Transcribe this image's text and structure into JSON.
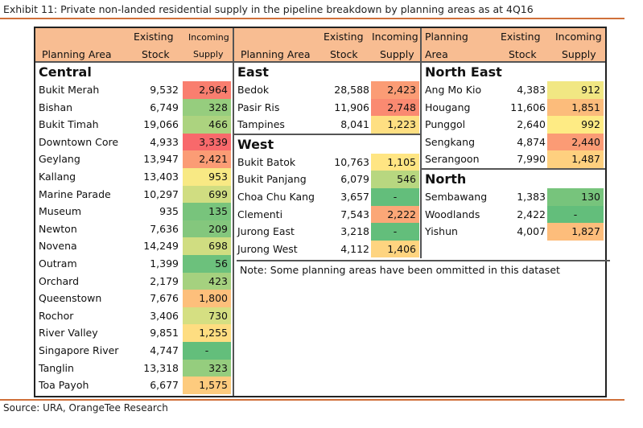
{
  "title": "Exhibit 11: Private non-landed residential supply in the pipeline breakdown by planning areas as at 4Q16",
  "source": "Source: URA, OrangeTee Research",
  "note": "Note: Some planning areas have been ommitted in this dataset",
  "headers": {
    "central": {
      "area": "Planning Area",
      "stock1": "Existing",
      "stock2": "Stock",
      "supply1": "Incoming",
      "supply2": "Supply"
    },
    "middle": {
      "area": "Planning Area",
      "stock1": "Existing",
      "stock2": "Stock",
      "supply1": "Incoming",
      "supply2": "Supply"
    },
    "right": {
      "area1": "Planning",
      "area2": "Area",
      "stock1": "Existing",
      "stock2": "Stock",
      "supply1": "Incoming",
      "supply2": "Supply"
    }
  },
  "columns": [
    {
      "regions": [
        {
          "name": "Central",
          "rows": [
            [
              "Bukit Merah",
              "9,532",
              "2,964"
            ],
            [
              "Bishan",
              "6,749",
              "328"
            ],
            [
              "Bukit Timah",
              "19,066",
              "466"
            ],
            [
              "Downtown Core",
              "4,933",
              "3,339"
            ],
            [
              "Geylang",
              "13,947",
              "2,421"
            ],
            [
              "Kallang",
              "13,403",
              "953"
            ],
            [
              "Marine Parade",
              "10,297",
              "699"
            ],
            [
              "Museum",
              "935",
              "135"
            ],
            [
              "Newton",
              "7,636",
              "209"
            ],
            [
              "Novena",
              "14,249",
              "698"
            ],
            [
              "Outram",
              "1,399",
              "56"
            ],
            [
              "Orchard",
              "2,179",
              "423"
            ],
            [
              "Queenstown",
              "7,676",
              "1,800"
            ],
            [
              "Rochor",
              "3,406",
              "730"
            ],
            [
              "River Valley",
              "9,851",
              "1,255"
            ],
            [
              "Singapore River",
              "4,747",
              "-"
            ],
            [
              "Tanglin",
              "13,318",
              "323"
            ],
            [
              "Toa Payoh",
              "6,677",
              "1,575"
            ]
          ]
        }
      ]
    },
    {
      "regions": [
        {
          "name": "East",
          "rows": [
            [
              "Bedok",
              "28,588",
              "2,423"
            ],
            [
              "Pasir Ris",
              "11,906",
              "2,748"
            ],
            [
              "Tampines",
              "8,041",
              "1,223"
            ]
          ]
        },
        {
          "name": "West",
          "rows": [
            [
              "Bukit Batok",
              "10,763",
              "1,105"
            ],
            [
              "Bukit Panjang",
              "6,079",
              "546"
            ],
            [
              "Choa Chu Kang",
              "3,657",
              "-"
            ],
            [
              "Clementi",
              "7,543",
              "2,222"
            ],
            [
              "Jurong East",
              "3,218",
              "-"
            ],
            [
              "Jurong West",
              "4,112",
              "1,406"
            ]
          ]
        }
      ]
    },
    {
      "regions": [
        {
          "name": "North East",
          "rows": [
            [
              "Ang Mo Kio",
              "4,383",
              "912"
            ],
            [
              "Hougang",
              "11,606",
              "1,851"
            ],
            [
              "Punggol",
              "2,640",
              "992"
            ],
            [
              "Sengkang",
              "4,874",
              "2,440"
            ],
            [
              "Serangoon",
              "7,990",
              "1,487"
            ]
          ]
        },
        {
          "name": "North",
          "rows": [
            [
              "Sembawang",
              "1,383",
              "130"
            ],
            [
              "Woodlands",
              "2,422",
              "-"
            ],
            [
              "Yishun",
              "4,007",
              "1,827"
            ]
          ]
        }
      ]
    }
  ],
  "colors": {
    "low": "#63be7b",
    "mid": "#ffeb84",
    "high": "#f8696b",
    "header": "#f8bd92",
    "rule": "#d0703a"
  }
}
